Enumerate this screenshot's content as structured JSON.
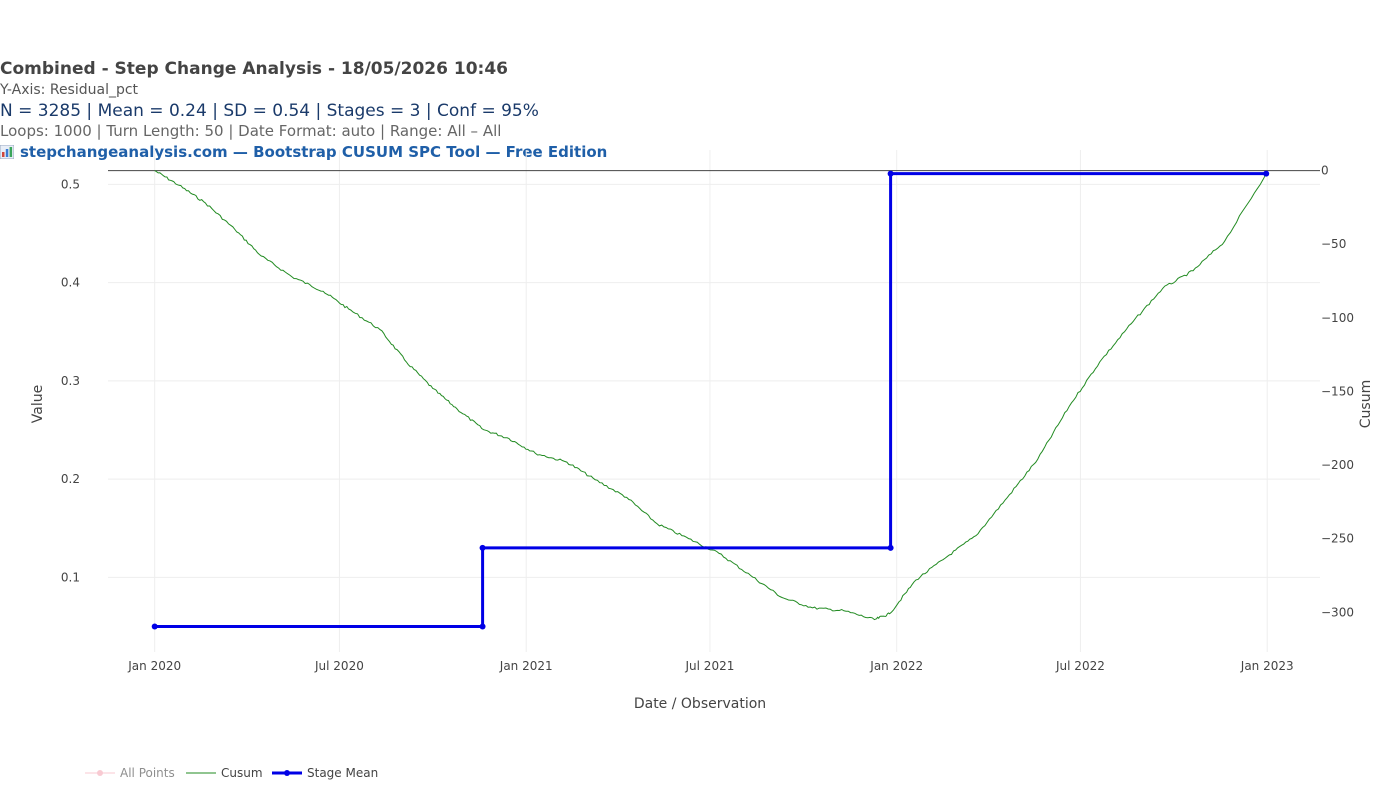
{
  "header": {
    "title": "Combined - Step Change Analysis - 18/05/2026 10:46",
    "y_axis_line": "Y-Axis: Residual_pct",
    "stats_line": "N = 3285  |  Mean = 0.24  |  SD = 0.54  |  Stages = 3  |  Conf = 95%",
    "params_line": "Loops: 1000  |  Turn Length: 50  |  Date Format: auto  |  Range: All – All",
    "source_line": "stepchangeanalysis.com — Bootstrap CUSUM SPC Tool — Free Edition"
  },
  "chart_data": {
    "type": "line",
    "xlabel": "Date / Observation",
    "ylabel": "Value",
    "y2label": "Cusum",
    "x_range": [
      "2019-11-16",
      "2023-02-22"
    ],
    "y_range": [
      0.024,
      0.535
    ],
    "y2_range": [
      -327,
      14
    ],
    "x_ticks": [
      {
        "date": "2020-01-01",
        "label": "Jan 2020"
      },
      {
        "date": "2020-07-01",
        "label": "Jul 2020"
      },
      {
        "date": "2021-01-01",
        "label": "Jan 2021"
      },
      {
        "date": "2021-07-01",
        "label": "Jul 2021"
      },
      {
        "date": "2022-01-01",
        "label": "Jan 2022"
      },
      {
        "date": "2022-07-01",
        "label": "Jul 2022"
      },
      {
        "date": "2023-01-01",
        "label": "Jan 2023"
      }
    ],
    "y_ticks": [
      {
        "value": 0.1,
        "label": "0.1"
      },
      {
        "value": 0.2,
        "label": "0.2"
      },
      {
        "value": 0.3,
        "label": "0.3"
      },
      {
        "value": 0.4,
        "label": "0.4"
      },
      {
        "value": 0.5,
        "label": "0.5"
      }
    ],
    "y2_ticks": [
      {
        "value": 0,
        "label": "0"
      },
      {
        "value": -50,
        "label": "−50"
      },
      {
        "value": -100,
        "label": "−100"
      },
      {
        "value": -150,
        "label": "−150"
      },
      {
        "value": -200,
        "label": "−200"
      },
      {
        "value": -250,
        "label": "−250"
      },
      {
        "value": -300,
        "label": "−300"
      }
    ],
    "series": [
      {
        "name": "All Points",
        "axis": "y",
        "visible": false,
        "color": "#f4a7b5",
        "values": []
      },
      {
        "name": "Cusum",
        "axis": "y2",
        "color": "#228b22",
        "points": [
          [
            "2020-01-01",
            0
          ],
          [
            "2020-01-25",
            -10
          ],
          [
            "2020-02-20",
            -22
          ],
          [
            "2020-03-20",
            -40
          ],
          [
            "2020-04-15",
            -58
          ],
          [
            "2020-05-15",
            -72
          ],
          [
            "2020-06-15",
            -82
          ],
          [
            "2020-07-10",
            -94
          ],
          [
            "2020-08-10",
            -108
          ],
          [
            "2020-09-05",
            -130
          ],
          [
            "2020-10-01",
            -148
          ],
          [
            "2020-10-25",
            -162
          ],
          [
            "2020-11-20",
            -176
          ],
          [
            "2020-12-15",
            -182
          ],
          [
            "2021-01-10",
            -192
          ],
          [
            "2021-02-10",
            -198
          ],
          [
            "2021-03-10",
            -210
          ],
          [
            "2021-04-10",
            -222
          ],
          [
            "2021-05-10",
            -240
          ],
          [
            "2021-06-10",
            -250
          ],
          [
            "2021-07-10",
            -260
          ],
          [
            "2021-08-10",
            -275
          ],
          [
            "2021-09-10",
            -290
          ],
          [
            "2021-10-10",
            -297
          ],
          [
            "2021-11-10",
            -299
          ],
          [
            "2021-12-10",
            -305
          ],
          [
            "2021-12-25",
            -301
          ],
          [
            "2022-01-20",
            -278
          ],
          [
            "2022-02-20",
            -262
          ],
          [
            "2022-03-20",
            -248
          ],
          [
            "2022-04-20",
            -222
          ],
          [
            "2022-05-20",
            -196
          ],
          [
            "2022-06-20",
            -160
          ],
          [
            "2022-07-20",
            -130
          ],
          [
            "2022-08-20",
            -104
          ],
          [
            "2022-09-20",
            -80
          ],
          [
            "2022-10-20",
            -68
          ],
          [
            "2022-11-20",
            -48
          ],
          [
            "2022-12-31",
            -2
          ]
        ]
      },
      {
        "name": "Stage Mean",
        "axis": "y",
        "color": "#0000e6",
        "points": [
          [
            "2020-01-01",
            0.05
          ],
          [
            "2020-11-19",
            0.05
          ],
          [
            "2020-11-19",
            0.13
          ],
          [
            "2021-12-26",
            0.13
          ],
          [
            "2021-12-26",
            0.511
          ],
          [
            "2022-12-31",
            0.511
          ]
        ],
        "markers": [
          [
            "2020-01-01",
            0.05
          ],
          [
            "2020-11-19",
            0.05
          ],
          [
            "2020-11-19",
            0.13
          ],
          [
            "2021-12-26",
            0.13
          ],
          [
            "2021-12-26",
            0.511
          ],
          [
            "2022-12-31",
            0.511
          ]
        ]
      }
    ],
    "legend_position": "bottom-left"
  }
}
